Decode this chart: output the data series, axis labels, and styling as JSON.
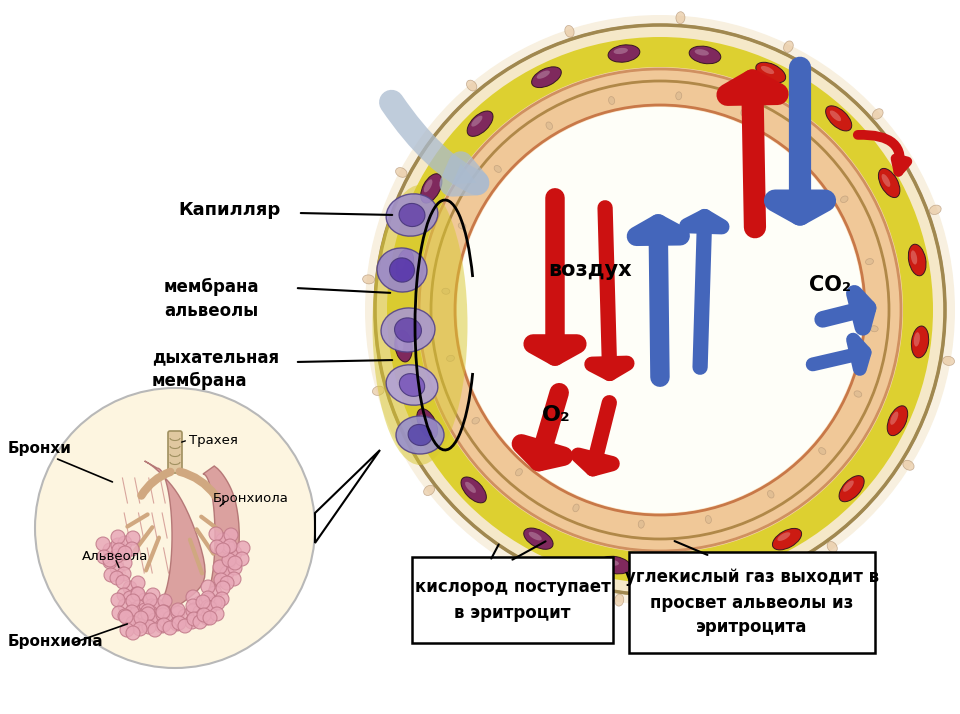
{
  "bg_color": "#ffffff",
  "labels": {
    "kapillyar": "Капилляр",
    "membrana_alveoly": "мембрана\nальвеолы",
    "dyhatelnaya_membrana": "дыхательная\nмембрана",
    "vozdukh": "воздух",
    "o2": "O₂",
    "co2": "CO₂",
    "kislorod": "кислород поступает\nв эритроцит",
    "uglekisly": "углекислый газ выходит в\nпросвет альвеолы из\nэритроцита",
    "bronkhi": "Бронхи",
    "bronkhiola_bottom": "Бронхиола",
    "alveola": "Альвеола",
    "bronkhiola_inset": "Бронхиола",
    "trakhea": "Трахея"
  },
  "colors": {
    "red_cell_oxy": "#cc1111",
    "red_cell_deoxy": "#7a2060",
    "arrow_red": "#cc1111",
    "arrow_blue": "#4466bb",
    "arrow_blue_light": "#99aacc",
    "capillary_yellow": "#e8d84a",
    "capillary_outer": "#f0e0b0",
    "alveola_wall_pink": "#f0c4a0",
    "alveola_inner": "#fefef5",
    "text_black": "#000000",
    "lung_pink": "#d89090",
    "inset_bg": "#fdf5e0"
  },
  "figsize": [
    9.6,
    7.14
  ],
  "dpi": 100
}
